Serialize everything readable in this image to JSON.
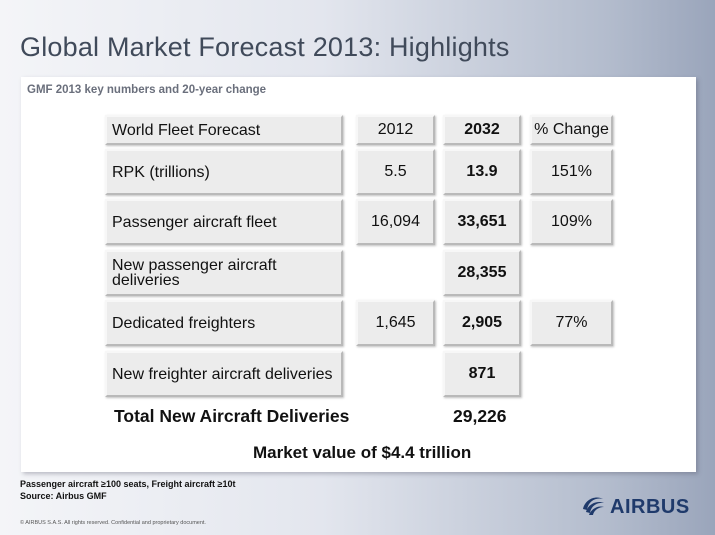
{
  "title": "Global Market Forecast 2013: Highlights",
  "panel_subtitle": "GMF 2013 key numbers and 20-year change",
  "table": {
    "headers": [
      "World Fleet Forecast",
      "2012",
      "2032",
      "% Change"
    ],
    "rows": [
      {
        "label": "RPK (trillions)",
        "y2012": "5.5",
        "y2032": "13.9",
        "change": "151%"
      },
      {
        "label": "Passenger aircraft fleet",
        "y2012": "16,094",
        "y2032": "33,651",
        "change": "109%"
      },
      {
        "label": "New passenger aircraft deliveries",
        "y2012": "",
        "y2032": "28,355",
        "change": ""
      },
      {
        "label": "Dedicated freighters",
        "y2012": "1,645",
        "y2032": "2,905",
        "change": "77%"
      },
      {
        "label": "New freighter aircraft deliveries",
        "y2012": "",
        "y2032": "871",
        "change": ""
      }
    ],
    "total_label": "Total New Aircraft Deliveries",
    "total_value": "29,226"
  },
  "market_value": "Market value of $4.4 trillion",
  "footnote_line1": "Passenger aircraft ≥100 seats, Freight aircraft ≥10t",
  "footnote_line2": "Source: Airbus GMF",
  "copyright": "© AIRBUS S.A.S. All rights reserved. Confidential and proprietary document.",
  "brand": "AIRBUS",
  "icon": "airbus-swirl-logo-icon"
}
